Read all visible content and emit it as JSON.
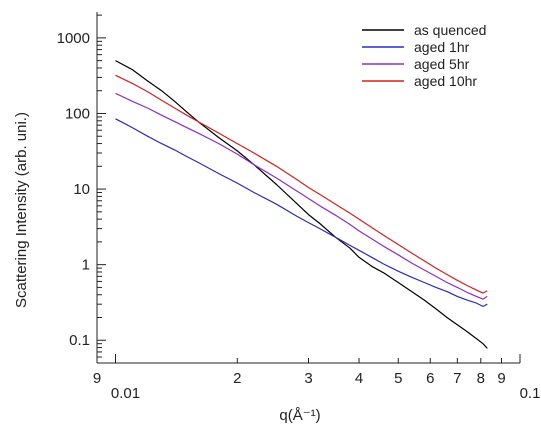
{
  "chart_data": {
    "type": "line",
    "xlabel": "q(Å⁻¹)",
    "ylabel": "Scattering Intensity (arb. uni.)",
    "x_scale": "log",
    "y_scale": "log",
    "xlim": [
      0.009,
      0.1
    ],
    "ylim": [
      0.05,
      2200
    ],
    "grid": false,
    "legend_position": "top-right",
    "x_ticks": [
      {
        "value": 0.009,
        "label": "9"
      },
      {
        "value": 0.01,
        "label": "0.01"
      },
      {
        "value": 0.02,
        "label": "2"
      },
      {
        "value": 0.03,
        "label": "3"
      },
      {
        "value": 0.04,
        "label": "4"
      },
      {
        "value": 0.05,
        "label": "5"
      },
      {
        "value": 0.06,
        "label": "6"
      },
      {
        "value": 0.07,
        "label": "7"
      },
      {
        "value": 0.08,
        "label": "8"
      },
      {
        "value": 0.09,
        "label": "9"
      },
      {
        "value": 0.1,
        "label": "0.1"
      }
    ],
    "y_ticks": [
      {
        "value": 0.1,
        "label": "0.1"
      },
      {
        "value": 1,
        "label": "1"
      },
      {
        "value": 10,
        "label": "10"
      },
      {
        "value": 100,
        "label": "100"
      },
      {
        "value": 1000,
        "label": "1000"
      }
    ],
    "series": [
      {
        "name": "as quenced",
        "color": "#000000",
        "x": [
          0.01,
          0.011,
          0.012,
          0.013,
          0.014,
          0.015,
          0.016,
          0.018,
          0.02,
          0.022,
          0.025,
          0.028,
          0.03,
          0.032,
          0.035,
          0.038,
          0.04,
          0.043,
          0.046,
          0.05,
          0.054,
          0.058,
          0.062,
          0.066,
          0.07,
          0.074,
          0.078,
          0.081,
          0.083
        ],
        "y": [
          500,
          380,
          270,
          200,
          145,
          105,
          78,
          48,
          32,
          21,
          11.5,
          6.5,
          4.6,
          3.5,
          2.3,
          1.65,
          1.25,
          0.95,
          0.78,
          0.58,
          0.44,
          0.34,
          0.26,
          0.2,
          0.16,
          0.13,
          0.105,
          0.09,
          0.078
        ]
      },
      {
        "name": "aged 1hr",
        "color": "#2b2bbd",
        "x": [
          0.01,
          0.011,
          0.012,
          0.013,
          0.014,
          0.015,
          0.016,
          0.018,
          0.02,
          0.022,
          0.025,
          0.028,
          0.03,
          0.032,
          0.035,
          0.038,
          0.04,
          0.043,
          0.046,
          0.05,
          0.054,
          0.058,
          0.062,
          0.066,
          0.07,
          0.074,
          0.078,
          0.081,
          0.083
        ],
        "y": [
          85,
          65,
          50,
          40,
          33,
          27,
          22.5,
          16,
          12,
          9,
          6.3,
          4.4,
          3.6,
          3.0,
          2.3,
          1.8,
          1.55,
          1.25,
          1.02,
          0.82,
          0.68,
          0.58,
          0.5,
          0.44,
          0.38,
          0.34,
          0.31,
          0.28,
          0.3
        ]
      },
      {
        "name": "aged 5hr",
        "color": "#8b2fc9",
        "x": [
          0.01,
          0.011,
          0.012,
          0.013,
          0.014,
          0.015,
          0.016,
          0.018,
          0.02,
          0.022,
          0.025,
          0.028,
          0.03,
          0.032,
          0.035,
          0.038,
          0.04,
          0.043,
          0.046,
          0.05,
          0.054,
          0.058,
          0.062,
          0.066,
          0.07,
          0.074,
          0.078,
          0.081,
          0.083
        ],
        "y": [
          185,
          145,
          118,
          95,
          78,
          65,
          55,
          40,
          29,
          21,
          14,
          9.5,
          7.5,
          6.0,
          4.5,
          3.4,
          2.8,
          2.2,
          1.75,
          1.35,
          1.05,
          0.85,
          0.7,
          0.58,
          0.5,
          0.43,
          0.38,
          0.35,
          0.38
        ]
      },
      {
        "name": "aged 10hr",
        "color": "#d42020",
        "x": [
          0.01,
          0.011,
          0.012,
          0.013,
          0.014,
          0.015,
          0.016,
          0.018,
          0.02,
          0.022,
          0.025,
          0.028,
          0.03,
          0.032,
          0.035,
          0.038,
          0.04,
          0.043,
          0.046,
          0.05,
          0.054,
          0.058,
          0.062,
          0.066,
          0.07,
          0.074,
          0.078,
          0.081,
          0.083
        ],
        "y": [
          320,
          250,
          195,
          150,
          118,
          95,
          78,
          55,
          40,
          30,
          20,
          13.5,
          10.5,
          8.5,
          6.3,
          4.8,
          4.0,
          3.1,
          2.45,
          1.85,
          1.42,
          1.12,
          0.9,
          0.74,
          0.62,
          0.53,
          0.46,
          0.42,
          0.45
        ]
      }
    ]
  }
}
